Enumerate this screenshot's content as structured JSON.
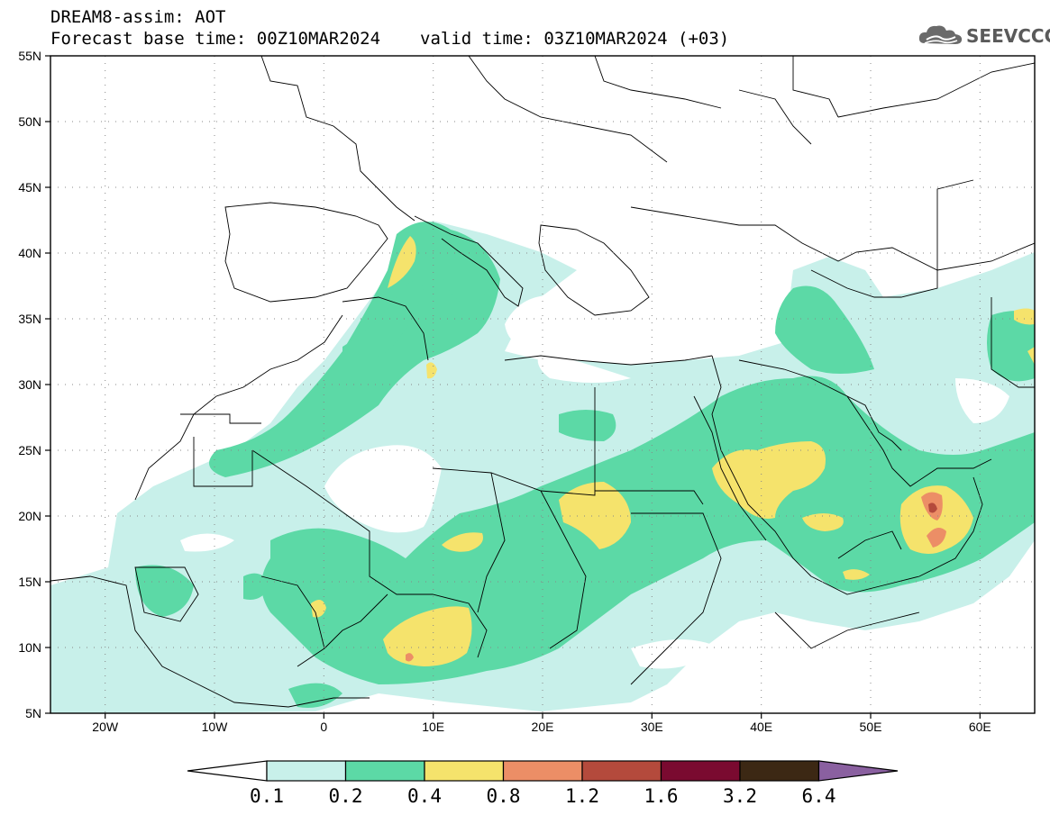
{
  "header": {
    "title": "DREAM8-assim: AOT",
    "forecast_base": "Forecast base time: 00Z10MAR2024",
    "valid_time": "valid time: 03Z10MAR2024 (+03)"
  },
  "logo": {
    "text": "SEEVCCC",
    "icon": "cloud-icon"
  },
  "map": {
    "lon_range": [
      -25,
      65
    ],
    "lat_range": [
      5,
      55
    ],
    "lat_ticks": [
      "55N",
      "50N",
      "45N",
      "40N",
      "35N",
      "30N",
      "25N",
      "20N",
      "15N",
      "10N",
      "5N"
    ],
    "lon_ticks": [
      "20W",
      "10W",
      "0",
      "10E",
      "20E",
      "30E",
      "40E",
      "50E",
      "60E"
    ],
    "grid": true
  },
  "colorbar": {
    "labels": [
      "0.1",
      "0.2",
      "0.4",
      "0.8",
      "1.2",
      "1.6",
      "3.2",
      "6.4"
    ],
    "colors": [
      "#ffffff",
      "#c8f0ea",
      "#5cd9a6",
      "#f5e36c",
      "#ec8e66",
      "#b44a3c",
      "#7a0a30",
      "#3c2814",
      "#8a60a0"
    ]
  }
}
